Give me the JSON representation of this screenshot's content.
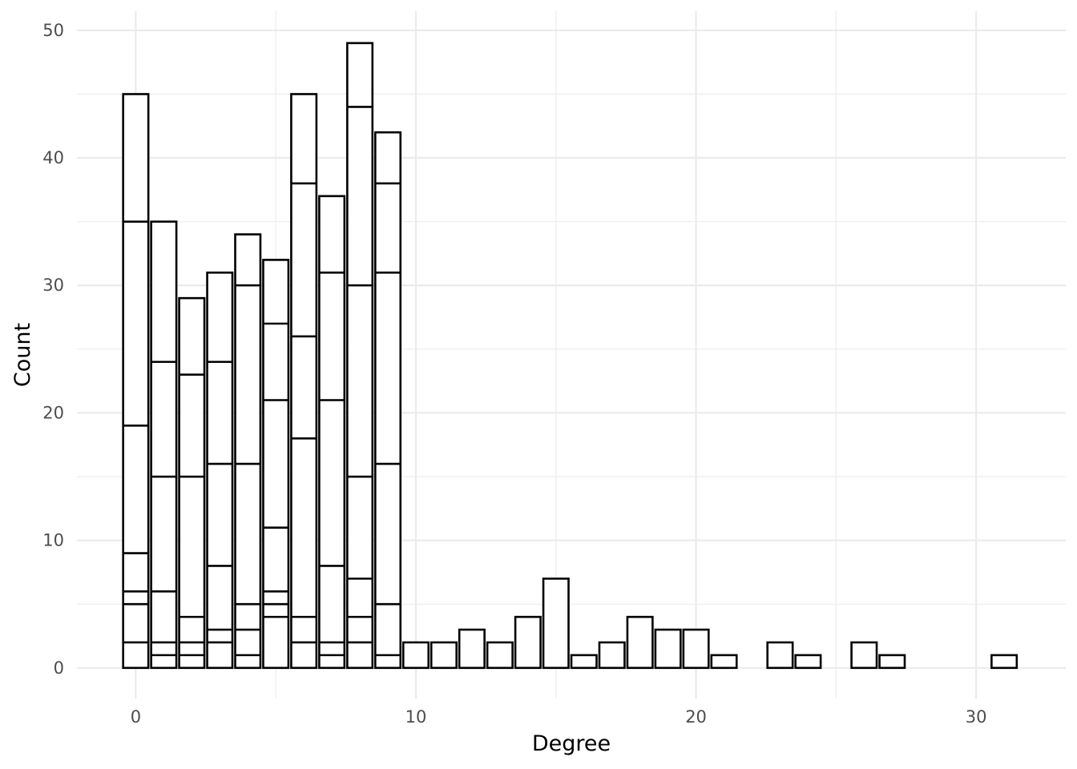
{
  "chart_data": {
    "type": "bar",
    "title": "",
    "xlabel": "Degree",
    "ylabel": "Count",
    "xlim": [
      -2.1,
      33.2
    ],
    "ylim": [
      -2.4,
      51.5
    ],
    "x_ticks": [
      0,
      10,
      20,
      30
    ],
    "x_tick_labels": [
      "0",
      "10",
      "20",
      "30"
    ],
    "y_ticks": [
      0,
      10,
      20,
      30,
      40,
      50
    ],
    "y_tick_labels": [
      "0",
      "10",
      "20",
      "30",
      "40",
      "50"
    ],
    "grid": true,
    "legend": "none",
    "bar_fill": "#ffffff",
    "bar_outline": "#000000",
    "bars": [
      {
        "x": 0,
        "count": 45,
        "stack_boundaries": [
          2,
          5,
          6,
          9,
          19,
          35
        ]
      },
      {
        "x": 1,
        "count": 35,
        "stack_boundaries": [
          1,
          2,
          6,
          15,
          24
        ]
      },
      {
        "x": 2,
        "count": 29,
        "stack_boundaries": [
          1,
          2,
          4,
          15,
          23
        ]
      },
      {
        "x": 3,
        "count": 31,
        "stack_boundaries": [
          2,
          3,
          8,
          16,
          24
        ]
      },
      {
        "x": 4,
        "count": 34,
        "stack_boundaries": [
          1,
          3,
          5,
          16,
          30
        ]
      },
      {
        "x": 5,
        "count": 32,
        "stack_boundaries": [
          4,
          5,
          6,
          11,
          21,
          27
        ]
      },
      {
        "x": 6,
        "count": 45,
        "stack_boundaries": [
          2,
          4,
          18,
          26,
          38
        ]
      },
      {
        "x": 7,
        "count": 37,
        "stack_boundaries": [
          1,
          2,
          8,
          21,
          31
        ]
      },
      {
        "x": 8,
        "count": 49,
        "stack_boundaries": [
          2,
          4,
          7,
          15,
          30,
          44
        ]
      },
      {
        "x": 9,
        "count": 42,
        "stack_boundaries": [
          1,
          5,
          16,
          31,
          38
        ]
      },
      {
        "x": 10,
        "count": 2,
        "stack_boundaries": []
      },
      {
        "x": 11,
        "count": 2,
        "stack_boundaries": []
      },
      {
        "x": 12,
        "count": 3,
        "stack_boundaries": []
      },
      {
        "x": 13,
        "count": 2,
        "stack_boundaries": []
      },
      {
        "x": 14,
        "count": 4,
        "stack_boundaries": []
      },
      {
        "x": 15,
        "count": 7,
        "stack_boundaries": []
      },
      {
        "x": 16,
        "count": 1,
        "stack_boundaries": []
      },
      {
        "x": 17,
        "count": 2,
        "stack_boundaries": []
      },
      {
        "x": 18,
        "count": 4,
        "stack_boundaries": []
      },
      {
        "x": 19,
        "count": 3,
        "stack_boundaries": []
      },
      {
        "x": 20,
        "count": 3,
        "stack_boundaries": []
      },
      {
        "x": 21,
        "count": 1,
        "stack_boundaries": []
      },
      {
        "x": 23,
        "count": 2,
        "stack_boundaries": []
      },
      {
        "x": 24,
        "count": 1,
        "stack_boundaries": []
      },
      {
        "x": 26,
        "count": 2,
        "stack_boundaries": []
      },
      {
        "x": 27,
        "count": 1,
        "stack_boundaries": []
      },
      {
        "x": 31,
        "count": 1,
        "stack_boundaries": []
      }
    ]
  }
}
